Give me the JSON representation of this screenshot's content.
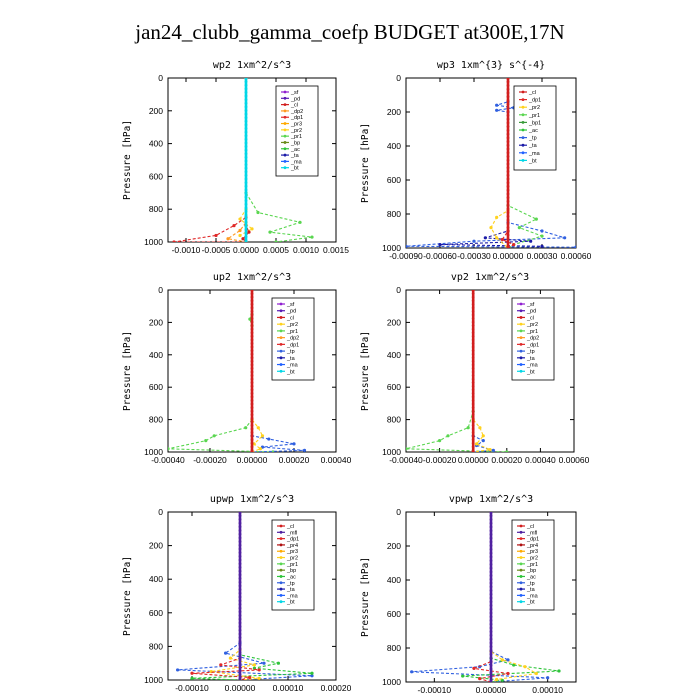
{
  "page_title": "jan24_clubb_gamma_coefp  BUDGET at300E,17N",
  "colors": {
    "bt": "#00d6e6",
    "pd": "#5a1bb5",
    "pr1": "#5ad650",
    "pr2": "#ffd21e",
    "cl": "#d21e1e",
    "sf": "#9020d0",
    "dp1": "#e02828",
    "dp2": "#ff9a20",
    "pr3": "#ffaa00",
    "bp": "#6a8b1a",
    "ac": "#2ec43a",
    "ta": "#1c1ca8",
    "ma": "#2060ff",
    "tp": "#3060e0",
    "bp1": "#3a9b3a",
    "mfl": "#5020a0",
    "pr4": "#b01010"
  },
  "chart_data": [
    {
      "type": "line",
      "title": "wp2   1xm^2/s^3",
      "ylabel": "Pressure  [hPa]",
      "ylim": [
        1000,
        0
      ],
      "xlim": [
        -0.0013,
        0.0015
      ],
      "xticks": [
        "-0.0010",
        "-0.0005",
        "0.0000",
        "0.0005",
        "0.0010",
        "0.0015"
      ],
      "yticks": [
        "0",
        "200",
        "400",
        "600",
        "800",
        "1000"
      ],
      "legend": [
        "_sf",
        "_pd",
        "_cl",
        "_dp2",
        "_dp1",
        "_pr3",
        "_pr2",
        "_pr1",
        "_bp",
        "_ac",
        "_ta",
        "_ma",
        "_bt"
      ],
      "series": [
        {
          "name": "_pr1",
          "key": "pr1",
          "x": [
            0,
            0,
            0.0002,
            0.0009,
            0.0004,
            0.0011,
            0.0005
          ],
          "y": [
            0,
            700,
            820,
            880,
            940,
            970,
            1000
          ]
        },
        {
          "name": "_pr2",
          "key": "pr2",
          "x": [
            0,
            0,
            -0.0001,
            0.0001,
            -0.0001,
            0
          ],
          "y": [
            0,
            800,
            860,
            920,
            960,
            1000
          ]
        },
        {
          "name": "_dp1",
          "key": "dp1",
          "x": [
            0,
            0,
            -0.0002,
            -0.0005,
            -0.0012,
            0
          ],
          "y": [
            0,
            850,
            900,
            960,
            1000,
            1000
          ]
        },
        {
          "name": "_dp2",
          "key": "dp2",
          "x": [
            0,
            0,
            -0.0001,
            -0.0003,
            0
          ],
          "y": [
            0,
            880,
            930,
            980,
            1000
          ]
        },
        {
          "name": "_cl",
          "key": "cl",
          "x": [
            0,
            0,
            5e-05,
            -5e-05,
            0
          ],
          "y": [
            0,
            900,
            940,
            980,
            1000
          ]
        },
        {
          "name": "_bt",
          "key": "bt",
          "x": [
            0,
            0
          ],
          "y": [
            0,
            1000
          ]
        }
      ]
    },
    {
      "type": "line",
      "title": "wp3   1xm^{3} s^{-4}",
      "ylabel": "Pressure  [hPa]",
      "ylim": [
        1000,
        0
      ],
      "xlim": [
        -0.0009,
        0.0006
      ],
      "xticks": [
        "-0.00090",
        "-0.00060",
        "-0.00030",
        "0.00000",
        "0.00030",
        "0.00060"
      ],
      "yticks": [
        "0",
        "200",
        "400",
        "600",
        "800",
        "1000"
      ],
      "legend": [
        "_cl",
        "_dp1",
        "_pr2",
        "_pr1",
        "_bp1",
        "_ac",
        "_tp",
        "_ta",
        "_ma",
        "_bt"
      ],
      "series": [
        {
          "name": "_tp",
          "key": "tp",
          "x": [
            0,
            0,
            -0.0001,
            5e-05,
            -0.0001,
            0,
            0,
            0.0003,
            0.0005,
            -0.0003,
            -0.0009,
            0.0006
          ],
          "y": [
            0,
            140,
            160,
            175,
            190,
            200,
            850,
            900,
            940,
            960,
            990,
            995
          ]
        },
        {
          "name": "_ta",
          "key": "ta",
          "x": [
            0,
            0,
            -0.0002,
            0.0002,
            -0.0006,
            0.0003
          ],
          "y": [
            0,
            900,
            940,
            960,
            980,
            990
          ]
        },
        {
          "name": "_pr1",
          "key": "pr1",
          "x": [
            0,
            0,
            0.00025,
            0.0001,
            0.0003,
            5e-05,
            0
          ],
          "y": [
            0,
            750,
            830,
            880,
            930,
            980,
            1000
          ]
        },
        {
          "name": "_pr2",
          "key": "pr2",
          "x": [
            0,
            0,
            -0.0001,
            -0.00015,
            -0.0001,
            0
          ],
          "y": [
            0,
            780,
            820,
            880,
            940,
            1000
          ]
        },
        {
          "name": "_dp1",
          "key": "dp1",
          "x": [
            0,
            0,
            -5e-05,
            5e-05,
            0
          ],
          "y": [
            0,
            900,
            950,
            980,
            1000
          ]
        },
        {
          "name": "_cl",
          "key": "cl",
          "x": [
            0,
            0
          ],
          "y": [
            0,
            1000
          ]
        }
      ]
    },
    {
      "type": "line",
      "title": "up2   1xm^2/s^3",
      "ylabel": "Pressure  [hPa]",
      "ylim": [
        1000,
        0
      ],
      "xlim": [
        -0.0004,
        0.0004
      ],
      "xticks": [
        "-0.00040",
        "-0.00020",
        "0.00000",
        "0.00020",
        "0.00040"
      ],
      "yticks": [
        "0",
        "200",
        "400",
        "600",
        "800",
        "1000"
      ],
      "legend": [
        "_sf",
        "_pd",
        "_cl",
        "_pr2",
        "_pr1",
        "_dp2",
        "_dp1",
        "_tp",
        "_ta",
        "_ma",
        "_bt"
      ],
      "series": [
        {
          "name": "_dp1",
          "key": "pr1",
          "x": [
            0,
            0,
            -1e-05,
            0,
            0,
            -3e-05,
            -0.00018,
            -0.00022,
            -0.0004,
            0.0001
          ],
          "y": [
            0,
            150,
            180,
            220,
            800,
            850,
            900,
            930,
            980,
            1000
          ]
        },
        {
          "name": "_tp",
          "key": "tp",
          "x": [
            0,
            0,
            8e-05,
            0.0002,
            5e-05,
            0.00025,
            0
          ],
          "y": [
            0,
            900,
            920,
            950,
            970,
            990,
            1000
          ]
        },
        {
          "name": "_pr2",
          "key": "pr2",
          "x": [
            0,
            0,
            3e-05,
            5e-05,
            1e-05,
            4e-05,
            0
          ],
          "y": [
            0,
            800,
            850,
            900,
            950,
            980,
            1000
          ]
        },
        {
          "name": "_cl",
          "key": "cl",
          "x": [
            0,
            0
          ],
          "y": [
            0,
            1000
          ]
        }
      ]
    },
    {
      "type": "line",
      "title": "vp2   1xm^2/s^3",
      "ylabel": "Pressure  [hPa]",
      "ylim": [
        1000,
        0
      ],
      "xlim": [
        -0.0004,
        0.0006
      ],
      "xticks": [
        "-0.00040",
        "-0.00020",
        "0.00000",
        "0.00020",
        "0.00040",
        "0.00060"
      ],
      "yticks": [
        "0",
        "200",
        "400",
        "600",
        "800",
        "1000"
      ],
      "legend": [
        "_sf",
        "_pd",
        "_cl",
        "_pr2",
        "_pr1",
        "_dp2",
        "_dp1",
        "_tp",
        "_ta",
        "_ma",
        "_bt"
      ],
      "series": [
        {
          "name": "_dp1",
          "key": "pr1",
          "x": [
            0,
            0,
            -3e-05,
            -0.00015,
            -0.0002,
            -0.0004,
            0.0002
          ],
          "y": [
            0,
            750,
            850,
            900,
            930,
            980,
            1000
          ]
        },
        {
          "name": "_tp",
          "key": "tp",
          "x": [
            0,
            0,
            6e-05,
            2e-05,
            0.00012,
            0
          ],
          "y": [
            0,
            900,
            930,
            960,
            990,
            1000
          ]
        },
        {
          "name": "_pr2",
          "key": "pr2",
          "x": [
            0,
            0,
            4e-05,
            6e-05,
            2e-05,
            0.0001,
            0
          ],
          "y": [
            0,
            800,
            850,
            900,
            950,
            985,
            1000
          ]
        },
        {
          "name": "_cl",
          "key": "cl",
          "x": [
            0,
            0
          ],
          "y": [
            0,
            1000
          ]
        }
      ]
    },
    {
      "type": "line",
      "title": "upwp   1xm^2/s^3",
      "ylabel": "Pressure  [hPa]",
      "ylim": [
        1000,
        0
      ],
      "xlim": [
        -0.00015,
        0.0002
      ],
      "xticks": [
        "-0.00010",
        "0.00000",
        "0.00010",
        "0.00020"
      ],
      "yticks": [
        "0",
        "200",
        "400",
        "600",
        "800",
        "1000"
      ],
      "legend": [
        "_cl",
        "_mfl",
        "_dp1",
        "_pr4",
        "_pr3",
        "_pr2",
        "_pr1",
        "_bp",
        "_ac",
        "_tp",
        "_ta",
        "_ma",
        "_bt"
      ],
      "series": [
        {
          "name": "_tp",
          "key": "tp",
          "x": [
            0,
            0,
            -3e-05,
            5e-05,
            -0.00013,
            0.00015,
            0
          ],
          "y": [
            0,
            780,
            840,
            900,
            940,
            975,
            1000
          ]
        },
        {
          "name": "_ac",
          "key": "ac",
          "x": [
            0,
            0,
            8e-05,
            3e-05,
            0.00015,
            -0.0001,
            0
          ],
          "y": [
            0,
            850,
            900,
            930,
            960,
            990,
            1000
          ]
        },
        {
          "name": "_pr2",
          "key": "pr2",
          "x": [
            0,
            0,
            -2e-05,
            3e-05,
            -6e-05,
            4e-05,
            0
          ],
          "y": [
            0,
            820,
            870,
            910,
            950,
            990,
            1000
          ]
        },
        {
          "name": "_dp1",
          "key": "dp1",
          "x": [
            0,
            0,
            -4e-05,
            4e-05,
            -0.0001,
            2e-05,
            0
          ],
          "y": [
            0,
            870,
            910,
            940,
            960,
            985,
            1000
          ]
        },
        {
          "name": "_mfl",
          "key": "mfl",
          "x": [
            0,
            0
          ],
          "y": [
            0,
            1000
          ]
        }
      ]
    },
    {
      "type": "line",
      "title": "vpwp   1xm^2/s^3",
      "ylabel": "Pressure  [hPa]",
      "ylim": [
        1000,
        0
      ],
      "xlim": [
        -0.00015,
        0.00015
      ],
      "xticks": [
        "-0.00010",
        "0.00000",
        "0.00010"
      ],
      "yticks": [
        "0",
        "200",
        "400",
        "600",
        "800",
        "1000"
      ],
      "legend": [
        "_cl",
        "_mfl",
        "_dp1",
        "_pr4",
        "_pr3",
        "_pr2",
        "_pr1",
        "_bp",
        "_ac",
        "_tp",
        "_ta",
        "_ma",
        "_bt"
      ],
      "series": [
        {
          "name": "_tp",
          "key": "tp",
          "x": [
            0,
            0,
            3e-05,
            -2e-05,
            -0.00014,
            0.0001,
            0
          ],
          "y": [
            0,
            820,
            870,
            910,
            940,
            975,
            1000
          ]
        },
        {
          "name": "_ac",
          "key": "ac",
          "x": [
            0,
            0,
            4e-05,
            0.00012,
            -5e-05,
            2e-05,
            0
          ],
          "y": [
            0,
            860,
            900,
            935,
            965,
            990,
            1000
          ]
        },
        {
          "name": "_pr2",
          "key": "pr2",
          "x": [
            0,
            0,
            2e-05,
            6e-05,
            8e-05,
            1e-05,
            0
          ],
          "y": [
            0,
            820,
            870,
            910,
            950,
            985,
            1000
          ]
        },
        {
          "name": "_dp1",
          "key": "dp1",
          "x": [
            0,
            0,
            -3e-05,
            3e-05,
            -2e-05,
            0
          ],
          "y": [
            0,
            880,
            920,
            950,
            980,
            1000
          ]
        },
        {
          "name": "_mfl",
          "key": "mfl",
          "x": [
            0,
            0
          ],
          "y": [
            0,
            1000
          ]
        }
      ]
    }
  ]
}
